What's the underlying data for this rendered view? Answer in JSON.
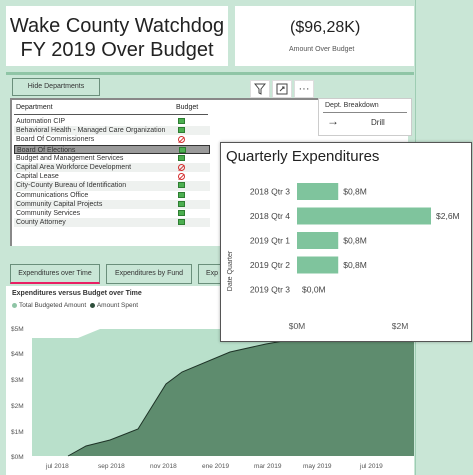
{
  "header": {
    "title_line1": "Wake County Watchdog",
    "title_line2": "FY 2019 Over Budget",
    "amount_value": "($96,28K)",
    "amount_label": "Amount Over Budget"
  },
  "slicer": {
    "hide_button": "Hide Departments",
    "toolbar_icons": [
      "filter-icon",
      "focus-mode-icon",
      "more-options-icon"
    ],
    "column_department": "Department",
    "column_budget": "Budget",
    "rows": [
      {
        "name": "Automation CIP",
        "status": "ok"
      },
      {
        "name": "Behavioral Health - Managed Care Organization",
        "status": "ok"
      },
      {
        "name": "Board Of Commissioners",
        "status": "no"
      },
      {
        "name": "Board Of Elections",
        "status": "ok",
        "selected": true
      },
      {
        "name": "Budget and Management Services",
        "status": "ok"
      },
      {
        "name": "Capital Area Workforce Development",
        "status": "no"
      },
      {
        "name": "Capital Lease",
        "status": "no"
      },
      {
        "name": "City-County Bureau of Identification",
        "status": "ok"
      },
      {
        "name": "Communications Office",
        "status": "ok"
      },
      {
        "name": "Community Capital Projects",
        "status": "ok"
      },
      {
        "name": "Community Services",
        "status": "ok"
      },
      {
        "name": "County Attorney",
        "status": "ok"
      }
    ],
    "status_colors": {
      "ok": "#4caf50",
      "no": "#d32f2f"
    }
  },
  "breakdown": {
    "title": "Dept. Breakdown",
    "arrow_icon": "arrow-right-icon",
    "drill_label": "Drill"
  },
  "tabs": [
    {
      "label": "Expenditures over Time",
      "active": true
    },
    {
      "label": "Expenditures by Fund",
      "active": false
    },
    {
      "label": "Exp",
      "active": false
    }
  ],
  "area_chart": {
    "title": "Expenditures versus Budget over Time",
    "legend_budget": "Total Budgeted Amount",
    "legend_spent": "Amount Spent",
    "budget_color": "#b9e0cb",
    "spent_color": "#5e8c6e",
    "y_ticks": [
      "$5M",
      "$4M",
      "$3M",
      "$2M",
      "$1M",
      "$0M"
    ],
    "x_ticks": [
      "jul 2018",
      "sep 2018",
      "nov 2018",
      "ene 2019",
      "mar 2019",
      "may 2019",
      "jul 2019"
    ]
  },
  "chart_data": {
    "type": "bar",
    "title": "Quarterly Expenditures",
    "ylabel": "Date Quarter",
    "categories": [
      "2018 Qtr 3",
      "2018 Qtr 4",
      "2019 Qtr 1",
      "2019 Qtr 2",
      "2019 Qtr 3"
    ],
    "values": [
      0.8,
      2.6,
      0.8,
      0.8,
      0.0
    ],
    "value_labels": [
      "$0,8M",
      "$2,6M",
      "$0,8M",
      "$0,8M",
      "$0,0M"
    ],
    "x_ticks": [
      "$0M",
      "$2M"
    ],
    "xlim": [
      0,
      2.6
    ],
    "orientation": "horizontal",
    "bar_color": "#7fc49d"
  }
}
